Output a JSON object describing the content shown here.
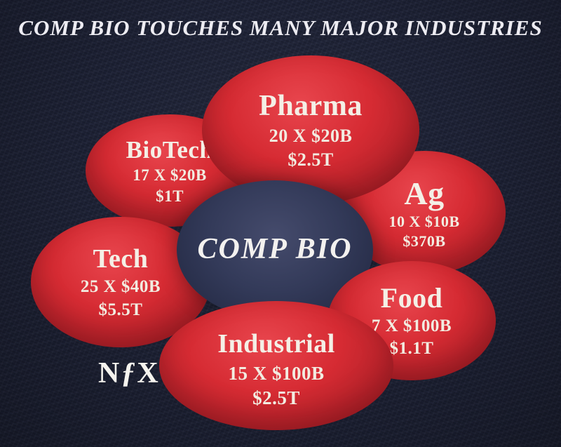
{
  "title": "COMP BIO TOUCHES MANY MAJOR INDUSTRIES",
  "center_bubble": {
    "label": "COMP BIO"
  },
  "industries": [
    {
      "name": "pharma",
      "label": "Pharma",
      "multiple": "20 X $20B",
      "total": "$2.5T"
    },
    {
      "name": "ag",
      "label": "Ag",
      "multiple": "10 X $10B",
      "total": "$370B"
    },
    {
      "name": "food",
      "label": "Food",
      "multiple": "7 X $100B",
      "total": "$1.1T"
    },
    {
      "name": "industrial",
      "label": "Industrial",
      "multiple": "15 X $100B",
      "total": "$2.5T"
    },
    {
      "name": "tech",
      "label": "Tech",
      "multiple": "25 X $40B",
      "total": "$5.5T"
    },
    {
      "name": "biotech",
      "label": "BioTech",
      "multiple": "17 X $20B",
      "total": "$1T"
    }
  ],
  "logo": {
    "n": "N",
    "f": "ƒ",
    "x": "X"
  },
  "colors": {
    "background": "#1d2236",
    "bubble_red": "#d62b33",
    "bubble_red_highlight": "#e8454d",
    "bubble_red_edge": "#9c1b22",
    "center_navy": "#333a59",
    "text": "#f4efe6"
  }
}
